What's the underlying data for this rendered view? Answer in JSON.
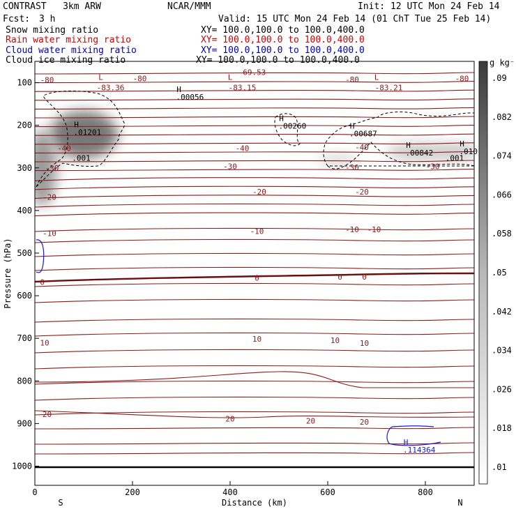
{
  "header": {
    "model": "CONTRAST   3km ARW",
    "center": "NCAR/MMM",
    "init": "Init: 12 UTC Mon 24 Feb 14",
    "fcst_label": "Fcst:",
    "fcst_value": "3 h",
    "valid": "Valid: 15 UTC Mon 24 Feb 14 (01 ChT Tue 25 Feb 14)",
    "fields": [
      {
        "name": "Snow mixing ratio",
        "xy": "XY= 100.0,100.0 to 100.0,400.0",
        "color": "#000000"
      },
      {
        "name": "Rain water mixing ratio",
        "xy": "XY= 100.0,100.0 to 100.0,400.0",
        "color": "#d00000"
      },
      {
        "name": "Cloud water mixing ratio",
        "xy": "XY= 100.0,100.0 to 100.0,400.0",
        "color": "#0000c0"
      },
      {
        "name": "Cloud ice mixing ratio",
        "xy": "XY= 100.0,100.0 to 100.0,400.0",
        "color": "#000000"
      }
    ]
  },
  "chart_data": {
    "type": "cross-section",
    "xlabel": "Distance (km)",
    "ylabel": "Pressure (hPa)",
    "xlim": [
      0,
      900
    ],
    "ylim": [
      1045,
      50
    ],
    "x_ticks": [
      0,
      200,
      400,
      600,
      800
    ],
    "y_ticks": [
      100,
      200,
      300,
      400,
      500,
      600,
      700,
      800,
      900,
      1000
    ],
    "x_endpoints": [
      "S",
      "N"
    ],
    "colorbar": {
      "unit": "g kg⁻¹",
      "levels": [
        ".01",
        ".018",
        ".026",
        ".034",
        ".042",
        ".05",
        ".058",
        ".066",
        ".074",
        ".082",
        ".09"
      ]
    },
    "temperature_labels": [
      {
        "text": "-80",
        "x": 25,
        "p": 95
      },
      {
        "text": "-80",
        "x": 215,
        "p": 92
      },
      {
        "text": "-80",
        "x": 650,
        "p": 94
      },
      {
        "text": "-80",
        "x": 875,
        "p": 92
      },
      {
        "text": "-69.53",
        "x": 445,
        "p": 77
      },
      {
        "text": "-83.36",
        "x": 155,
        "p": 113
      },
      {
        "text": "-83.15",
        "x": 425,
        "p": 113
      },
      {
        "text": "-83.21",
        "x": 725,
        "p": 113
      },
      {
        "text": "-40",
        "x": 60,
        "p": 255
      },
      {
        "text": "-40",
        "x": 425,
        "p": 255
      },
      {
        "text": "-40",
        "x": 670,
        "p": 253
      },
      {
        "text": "-30",
        "x": 35,
        "p": 302
      },
      {
        "text": "-30",
        "x": 400,
        "p": 298
      },
      {
        "text": "-30",
        "x": 650,
        "p": 300
      },
      {
        "text": "-30",
        "x": 815,
        "p": 298
      },
      {
        "text": "-20",
        "x": 30,
        "p": 370
      },
      {
        "text": "-20",
        "x": 460,
        "p": 358
      },
      {
        "text": "-20",
        "x": 670,
        "p": 358
      },
      {
        "text": "-10",
        "x": 30,
        "p": 455
      },
      {
        "text": "-10",
        "x": 455,
        "p": 450
      },
      {
        "text": "-10",
        "x": 650,
        "p": 446
      },
      {
        "text": "-10",
        "x": 695,
        "p": 446
      },
      {
        "text": "0",
        "x": 15,
        "p": 570
      },
      {
        "text": "0",
        "x": 455,
        "p": 560
      },
      {
        "text": "0",
        "x": 625,
        "p": 557
      },
      {
        "text": "0",
        "x": 675,
        "p": 557
      },
      {
        "text": "10",
        "x": 20,
        "p": 712
      },
      {
        "text": "10",
        "x": 455,
        "p": 703
      },
      {
        "text": "10",
        "x": 615,
        "p": 706
      },
      {
        "text": "10",
        "x": 675,
        "p": 713
      },
      {
        "text": "20",
        "x": 25,
        "p": 880
      },
      {
        "text": "20",
        "x": 400,
        "p": 890
      },
      {
        "text": "20",
        "x": 565,
        "p": 895
      },
      {
        "text": "20",
        "x": 675,
        "p": 898
      }
    ],
    "extrema": [
      {
        "type": "L",
        "x": 135,
        "p": 93
      },
      {
        "type": "L",
        "x": 400,
        "p": 93
      },
      {
        "type": "L",
        "x": 700,
        "p": 93
      },
      {
        "type": "H",
        "value": ".00056",
        "x": 295,
        "p": 122
      },
      {
        "type": "H",
        "value": ".01201",
        "x": 85,
        "p": 205
      },
      {
        "type": "H",
        "value": ".00260",
        "x": 505,
        "p": 190
      },
      {
        "type": "H",
        "value": ".00687",
        "x": 650,
        "p": 208
      },
      {
        "type": "H",
        "value": ".00842",
        "x": 765,
        "p": 253
      },
      {
        "type": "H",
        "value": ".010",
        "x": 875,
        "p": 250
      },
      {
        "type": "H",
        "value": ".114364",
        "x": 760,
        "p": 950
      }
    ],
    "contour_annotations": [
      {
        "text": ".001",
        "x": 95,
        "p": 283
      },
      {
        "text": ".001",
        "x": 860,
        "p": 283
      }
    ],
    "snow_blobs": [
      {
        "x": 100,
        "p": 222,
        "rx": 70,
        "rp": 55,
        "strength": 0.75
      },
      {
        "x": 15,
        "p": 300,
        "rx": 30,
        "rp": 90,
        "strength": 0.55
      },
      {
        "x": 620,
        "p": 282,
        "rx": 40,
        "rp": 15,
        "strength": 0.2
      },
      {
        "x": 790,
        "p": 262,
        "rx": 70,
        "rp": 20,
        "strength": 0.3
      },
      {
        "x": 870,
        "p": 262,
        "rx": 40,
        "rp": 18,
        "strength": 0.3
      }
    ]
  }
}
